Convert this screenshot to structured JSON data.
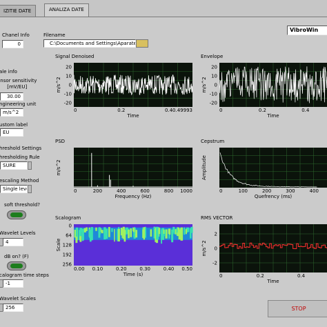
{
  "tabs": [
    "IZITIE DATE",
    "ANALIZA DATE"
  ],
  "brand": "VibroWin",
  "controls": [
    {
      "label": "Chanel Info",
      "value": "0"
    },
    {
      "label": "Filename",
      "value": "C:\\Documents and Settings\\Aparate"
    },
    {
      "label": "ale info"
    },
    {
      "label": "ensor sensitivity\n[mV/EU]",
      "value": "30.00"
    },
    {
      "label": "ngineering unit",
      "value": "m/s^2"
    },
    {
      "label": "ustom label",
      "value": "EU"
    },
    {
      "label": "hreshold Settings"
    },
    {
      "label": "hresholding Rule",
      "value": "SURE"
    },
    {
      "label": "escaling Method",
      "value": "Single level"
    },
    {
      "label": "soft threshold?"
    },
    {
      "label": "Wavelet Levels",
      "value": "4"
    },
    {
      "label": "dB on? (F)"
    },
    {
      "label": "calogram time steps",
      "value": "-1"
    },
    {
      "label": "Wavelet Scales",
      "value": "256"
    }
  ],
  "plots": [
    {
      "title": "Signal Denoised",
      "ylabel": "m/s^2",
      "xlabel": "Time",
      "yticks": [
        "20",
        "10",
        "0",
        "-10",
        "-20"
      ],
      "xticks": [
        "0",
        "0.2",
        "0.4",
        "0.49993"
      ]
    },
    {
      "title": "Envelope",
      "ylabel": "m/s^2",
      "xlabel": "Time",
      "yticks": [
        "20",
        "10",
        "0",
        "-10",
        "-20"
      ],
      "xticks": [
        "0",
        "0.2",
        "0.4"
      ]
    },
    {
      "title": "PSD",
      "ylabel": "m/s^2",
      "xlabel": "Frequency (Hz)",
      "yticks": [],
      "xticks": [
        "0",
        "200",
        "400",
        "600",
        "800",
        "1000"
      ]
    },
    {
      "title": "Cepstrum",
      "ylabel": "Amplitude",
      "xlabel": "Quefrency (ms)",
      "yticks": [],
      "xticks": [
        "0",
        "100",
        "200",
        "300",
        "400"
      ]
    },
    {
      "title": "Scalogram",
      "ylabel": "Scale",
      "xlabel": "Time (s)",
      "yticks": [
        "0",
        "64",
        "128",
        "192",
        "256"
      ],
      "xticks": [
        "0.00",
        "0.10",
        "0.20",
        "0.30",
        "0.40",
        "0.50"
      ]
    },
    {
      "title": "RMS VECTOR",
      "ylabel": "m/s^2",
      "xlabel": "Time",
      "yticks": [
        "2",
        "0",
        "-2"
      ],
      "xticks": [
        "0",
        "0.2",
        "0.4"
      ]
    }
  ],
  "stop": "STOP"
}
